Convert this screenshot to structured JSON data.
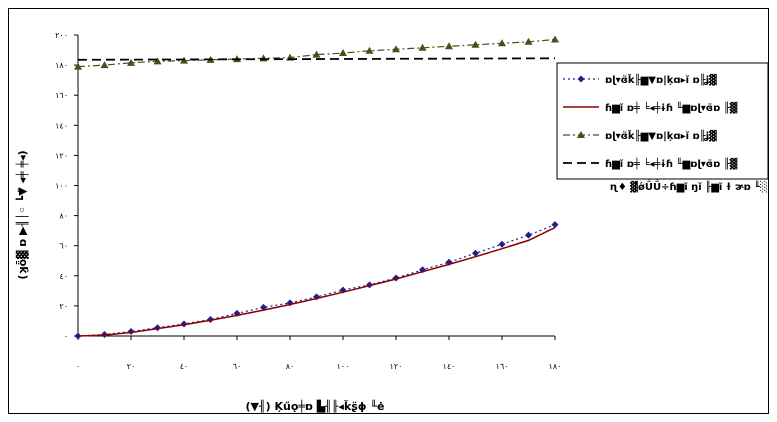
{
  "chart_data": {
    "type": "line",
    "xlabel": "(▼╢) Ķűǫ╪ɒ ▙╢╟◂ǩʂ̈ɸ ╙ė",
    "ylabel": "(ʞ̬ȫ▓ ɒ ▶╢│◦ ┗▼̈ ◂╪ ╪◂)",
    "x_ticks": [
      "٠",
      "٢٠",
      "٤٠",
      "٦٠",
      "٨٠",
      "١٠٠",
      "١٢٠",
      "١٤٠",
      "١٦٠",
      "١٨٠"
    ],
    "y_ticks": [
      "٠",
      "٢٠",
      "٤٠",
      "٦٠",
      "٨٠",
      "١٠٠",
      "١٢٠",
      "١٤٠",
      "١٦٠",
      "١٨٠",
      "٢٠٠"
    ],
    "xlim": [
      0,
      180
    ],
    "ylim": [
      0,
      200
    ],
    "legend_position": "right",
    "series": [
      {
        "name": "ɒɭ▾ɞ̈ǩ╟▆▼ɒ|ķɑ▸ĭ ɒ╟ʝ▓",
        "style": "dotted-diamond",
        "color": "#1f1f8f",
        "x": [
          0,
          10,
          20,
          30,
          40,
          50,
          60,
          70,
          80,
          90,
          100,
          110,
          120,
          130,
          140,
          150,
          160,
          170,
          180
        ],
        "y": [
          0,
          1,
          3,
          5.5,
          8,
          11,
          15,
          19,
          22,
          26,
          30.5,
          34,
          38.5,
          44,
          49,
          55,
          61,
          67,
          74
        ]
      },
      {
        "name": "ɦ▆ĭ ɒ╪ ╘◂╪ɨɦ ╙▆ɒɭ▾ɞ̈ɒ ╟▓",
        "style": "solid",
        "color": "#8b0000",
        "x": [
          0,
          10,
          20,
          30,
          40,
          50,
          60,
          70,
          80,
          90,
          100,
          110,
          120,
          130,
          140,
          150,
          160,
          170,
          180
        ],
        "y": [
          0,
          0.6,
          2.3,
          4.9,
          7.5,
          10.4,
          13.7,
          17.2,
          20.9,
          24.9,
          29.1,
          33.4,
          37.9,
          42.7,
          47.6,
          52.7,
          58,
          63.5,
          72
        ]
      },
      {
        "name": "ɒɭ▾ɞ̈ǩ╟▆▼ɒ|ķɑ▸ĭ ɒ╟ʝ▓",
        "style": "dashdot-triangle",
        "color": "#4d4d1a",
        "x": [
          0,
          10,
          20,
          30,
          40,
          50,
          60,
          70,
          80,
          90,
          100,
          110,
          120,
          130,
          140,
          150,
          160,
          170,
          180
        ],
        "y": [
          179,
          180,
          181.5,
          182.5,
          183,
          183.5,
          184,
          184.5,
          185,
          187,
          188,
          189.5,
          190.5,
          191.5,
          192.5,
          193.5,
          194.5,
          195.5,
          197
        ]
      },
      {
        "name": "ɦ▆ĭ ɒ╪ ╘◂╪ɨɦ ╙▆ɒɭ▾ɞ̈ɒ ╟▓",
        "style": "dashed",
        "color": "#000000",
        "x": [
          0,
          180
        ],
        "y": [
          183.5,
          184.5
        ]
      }
    ],
    "annotation": "ɳ♦ ▓̈ǿǗǗ÷ɦ▆ĭ ŋĭ ╟▆ĭ ɫ ɚɒ ╙░"
  }
}
